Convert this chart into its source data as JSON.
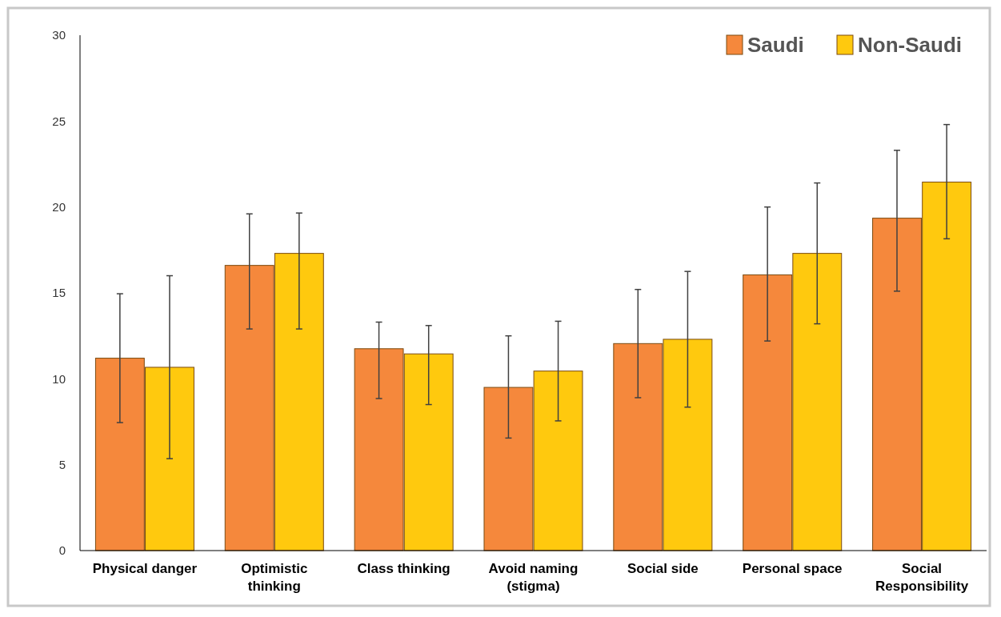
{
  "chart_data": {
    "type": "bar",
    "categories": [
      "Physical danger",
      "Optimistic thinking",
      "Class thinking",
      "Avoid naming (stigma)",
      "Social side",
      "Personal space",
      "Social Responsibility"
    ],
    "series": [
      {
        "name": "Saudi",
        "color": "#f5883c",
        "values": [
          11.2,
          16.6,
          11.75,
          9.5,
          12.05,
          16.05,
          19.35
        ],
        "errors": [
          [
            7.45,
            14.95
          ],
          [
            12.9,
            19.6
          ],
          [
            8.85,
            13.3
          ],
          [
            6.55,
            12.5
          ],
          [
            8.9,
            15.2
          ],
          [
            12.2,
            20.0
          ],
          [
            15.1,
            23.3
          ]
        ]
      },
      {
        "name": "Non-Saudi",
        "color": "#ffc90e",
        "values": [
          10.67,
          17.3,
          11.45,
          10.45,
          12.3,
          17.3,
          21.45
        ],
        "errors": [
          [
            5.35,
            16.0
          ],
          [
            12.9,
            19.65
          ],
          [
            8.5,
            13.1
          ],
          [
            7.55,
            13.35
          ],
          [
            8.35,
            16.25
          ],
          [
            13.2,
            21.4
          ],
          [
            18.15,
            24.8
          ]
        ]
      }
    ],
    "ylim": [
      0,
      30
    ],
    "yticks": [
      0,
      5,
      10,
      15,
      20,
      25,
      30
    ],
    "legend": "top right"
  }
}
